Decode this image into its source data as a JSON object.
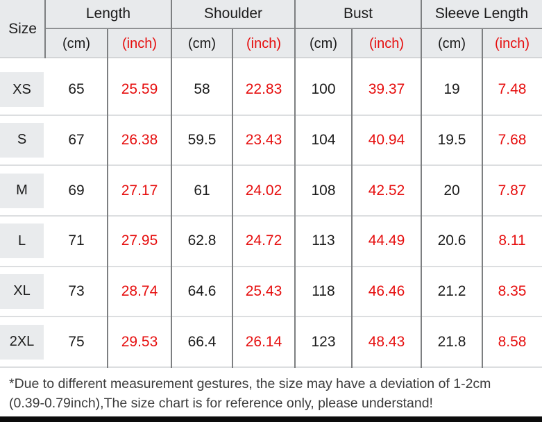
{
  "chart_data": {
    "type": "table",
    "title": "",
    "header": {
      "size": "Size",
      "groups": [
        "Length",
        "Shoulder",
        "Bust",
        "Sleeve Length"
      ],
      "units": [
        "(cm)",
        "(inch)"
      ]
    },
    "rows": [
      {
        "size": "XS",
        "values": [
          "65",
          "25.59",
          "58",
          "22.83",
          "100",
          "39.37",
          "19",
          "7.48"
        ]
      },
      {
        "size": "S",
        "values": [
          "67",
          "26.38",
          "59.5",
          "23.43",
          "104",
          "40.94",
          "19.5",
          "7.68"
        ]
      },
      {
        "size": "M",
        "values": [
          "69",
          "27.17",
          "61",
          "24.02",
          "108",
          "42.52",
          "20",
          "7.87"
        ]
      },
      {
        "size": "L",
        "values": [
          "71",
          "27.95",
          "62.8",
          "24.72",
          "113",
          "44.49",
          "20.6",
          "8.11"
        ]
      },
      {
        "size": "XL",
        "values": [
          "73",
          "28.74",
          "64.6",
          "25.43",
          "118",
          "46.46",
          "21.2",
          "8.35"
        ]
      },
      {
        "size": "2XL",
        "values": [
          "75",
          "29.53",
          "66.4",
          "26.14",
          "123",
          "48.43",
          "21.8",
          "8.58"
        ]
      }
    ]
  },
  "footnote": {
    "line1": "*Due to different measurement gestures, the size may have a deviation of 1-2cm",
    "line2": "(0.39-0.79inch),The size chart is for reference only, please understand!"
  },
  "colors": {
    "red": "#e60e0e",
    "header-bg": "#e8eaec",
    "size-box-bg": "#e9ebed",
    "line-dark": "#7d7f81",
    "line-mid": "#8f9193",
    "line-light": "#d3d5d7",
    "row-sep": "#dcdee0",
    "text": "#1b1b1b",
    "footnote-text": "#3b3b3b",
    "bottom-bar": "#0c0c0c",
    "page-bg": "#ffffff"
  }
}
